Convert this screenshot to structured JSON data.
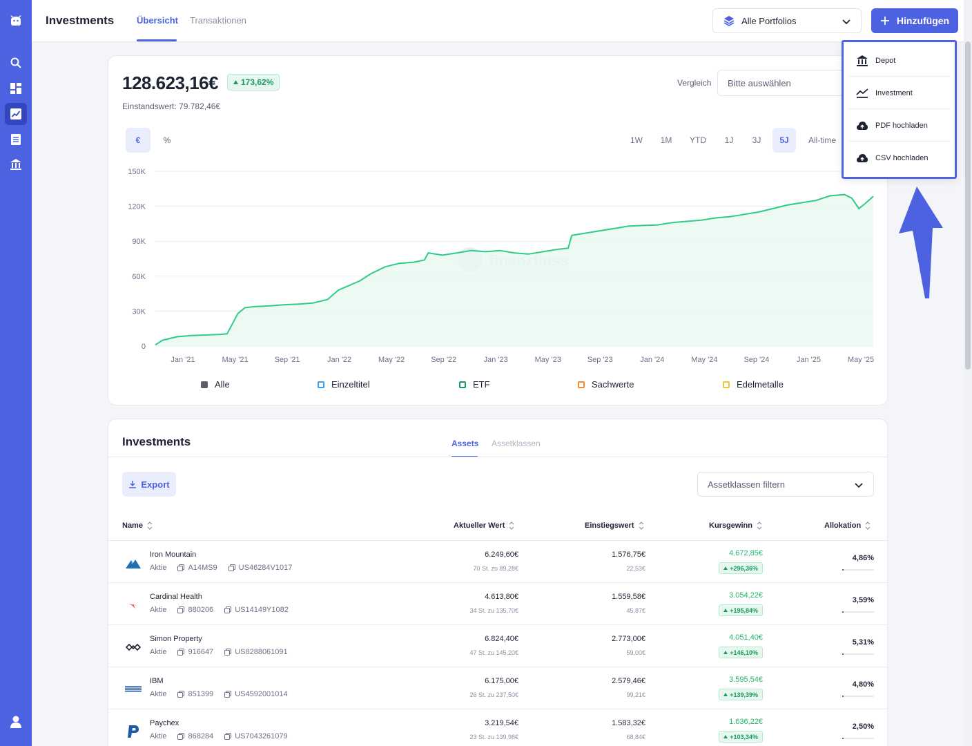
{
  "header": {
    "title": "Investments",
    "tabs": [
      {
        "label": "Übersicht"
      },
      {
        "label": "Transaktionen"
      }
    ],
    "portfolio_select": "Alle Portfolios",
    "add_button": "Hinzufügen"
  },
  "dropdown": {
    "items": [
      {
        "label": "Depot",
        "icon": "bank-icon"
      },
      {
        "label": "Investment",
        "icon": "chart-line-icon"
      },
      {
        "label": "PDF hochladen",
        "icon": "cloud-upload-icon"
      },
      {
        "label": "CSV hochladen",
        "icon": "cloud-upload-icon"
      }
    ]
  },
  "summary": {
    "value": "128.623,16€",
    "change": "173,62%",
    "cost_basis": "Einstandswert: 79.782,46€",
    "compare_label": "Vergleich",
    "compare_placeholder": "Bitte auswählen"
  },
  "units": [
    "€",
    "%"
  ],
  "ranges": [
    "1W",
    "1M",
    "YTD",
    "1J",
    "3J",
    "5J",
    "All-time"
  ],
  "active_range": "5J",
  "watermark": "finanzfluss",
  "chart_data": {
    "type": "area",
    "x_ticks": [
      "Jan '21",
      "May '21",
      "Sep '21",
      "Jan '22",
      "May '22",
      "Sep '22",
      "Jan '23",
      "May '23",
      "Sep '23",
      "Jan '24",
      "May '24",
      "Sep '24",
      "Jan '25",
      "May '25"
    ],
    "y_ticks": [
      "150K",
      "120K",
      "90K",
      "60K",
      "30K",
      "0"
    ],
    "ylim": [
      0,
      150000
    ],
    "series": [
      {
        "color": "#2ecc85",
        "points": [
          [
            0,
            1000
          ],
          [
            0.01,
            5000
          ],
          [
            0.03,
            8000
          ],
          [
            0.05,
            9000
          ],
          [
            0.07,
            9500
          ],
          [
            0.09,
            10000
          ],
          [
            0.1,
            10500
          ],
          [
            0.115,
            28000
          ],
          [
            0.125,
            33000
          ],
          [
            0.14,
            34000
          ],
          [
            0.16,
            34500
          ],
          [
            0.18,
            35500
          ],
          [
            0.2,
            36000
          ],
          [
            0.22,
            37000
          ],
          [
            0.24,
            40000
          ],
          [
            0.255,
            48000
          ],
          [
            0.27,
            52000
          ],
          [
            0.285,
            56000
          ],
          [
            0.3,
            62000
          ],
          [
            0.32,
            68000
          ],
          [
            0.34,
            71000
          ],
          [
            0.36,
            72000
          ],
          [
            0.375,
            74000
          ],
          [
            0.38,
            80000
          ],
          [
            0.4,
            78000
          ],
          [
            0.42,
            80000
          ],
          [
            0.44,
            82000
          ],
          [
            0.46,
            81000
          ],
          [
            0.48,
            82000
          ],
          [
            0.5,
            80000
          ],
          [
            0.52,
            79000
          ],
          [
            0.54,
            81000
          ],
          [
            0.56,
            83000
          ],
          [
            0.575,
            84000
          ],
          [
            0.58,
            95000
          ],
          [
            0.6,
            97000
          ],
          [
            0.62,
            99000
          ],
          [
            0.64,
            101000
          ],
          [
            0.66,
            103000
          ],
          [
            0.68,
            103500
          ],
          [
            0.7,
            104000
          ],
          [
            0.72,
            106000
          ],
          [
            0.74,
            107000
          ],
          [
            0.76,
            108000
          ],
          [
            0.78,
            110000
          ],
          [
            0.8,
            111000
          ],
          [
            0.82,
            113000
          ],
          [
            0.84,
            115000
          ],
          [
            0.86,
            118000
          ],
          [
            0.88,
            121000
          ],
          [
            0.9,
            123000
          ],
          [
            0.92,
            125000
          ],
          [
            0.94,
            129000
          ],
          [
            0.96,
            130000
          ],
          [
            0.97,
            127000
          ],
          [
            0.98,
            118000
          ],
          [
            0.99,
            123000
          ],
          [
            1.0,
            128600
          ]
        ]
      }
    ],
    "legend": [
      {
        "label": "Alle",
        "color": "#5a5f6b",
        "filled": true
      },
      {
        "label": "Einzeltitel",
        "color": "#3aa0f0",
        "filled": false
      },
      {
        "label": "ETF",
        "color": "#1a9a5b",
        "filled": false
      },
      {
        "label": "Sachwerte",
        "color": "#f28b2b",
        "filled": false
      },
      {
        "label": "Edelmetalle",
        "color": "#f2c230",
        "filled": false
      }
    ]
  },
  "investments": {
    "title": "Investments",
    "tabs": [
      {
        "label": "Assets"
      },
      {
        "label": "Assetklassen"
      }
    ],
    "export_label": "Export",
    "filter_placeholder": "Assetklassen filtern",
    "columns": [
      "Name",
      "Aktueller Wert",
      "Einstiegswert",
      "Kursgewinn",
      "Allokation"
    ],
    "rows": [
      {
        "name": "Iron Mountain",
        "type": "Aktie",
        "wkn": "A14MS9",
        "isin": "US46284V1017",
        "value": "6.249,60€",
        "value_sub": "70 St. zu 89,28€",
        "entry": "1.576,75€",
        "entry_sub": "22,53€",
        "gain": "4.672,85€",
        "gain_pct": "+296,36%",
        "alloc": "4,86%",
        "alloc_fraction": 0.0486,
        "logo": "iron-mountain-logo"
      },
      {
        "name": "Cardinal Health",
        "type": "Aktie",
        "wkn": "880206",
        "isin": "US14149Y1082",
        "value": "4.613,80€",
        "value_sub": "34 St. zu 135,70€",
        "entry": "1.559,58€",
        "entry_sub": "45,87€",
        "gain": "3.054,22€",
        "gain_pct": "+195,84%",
        "alloc": "3,59%",
        "alloc_fraction": 0.0359,
        "logo": "cardinal-health-logo"
      },
      {
        "name": "Simon Property",
        "type": "Aktie",
        "wkn": "916647",
        "isin": "US8288061091",
        "value": "6.824,40€",
        "value_sub": "47 St. zu 145,20€",
        "entry": "2.773,00€",
        "entry_sub": "59,00€",
        "gain": "4.051,40€",
        "gain_pct": "+146,10%",
        "alloc": "5,31%",
        "alloc_fraction": 0.0531,
        "logo": "simon-property-logo"
      },
      {
        "name": "IBM",
        "type": "Aktie",
        "wkn": "851399",
        "isin": "US4592001014",
        "value": "6.175,00€",
        "value_sub": "26 St. zu 237,50€",
        "entry": "2.579,46€",
        "entry_sub": "99,21€",
        "gain": "3.595,54€",
        "gain_pct": "+139,39%",
        "alloc": "4,80%",
        "alloc_fraction": 0.048,
        "logo": "ibm-logo"
      },
      {
        "name": "Paychex",
        "type": "Aktie",
        "wkn": "868284",
        "isin": "US7043261079",
        "value": "3.219,54€",
        "value_sub": "23 St. zu 139,98€",
        "entry": "1.583,32€",
        "entry_sub": "68,84€",
        "gain": "1.636,22€",
        "gain_pct": "+103,34%",
        "alloc": "2,50%",
        "alloc_fraction": 0.025,
        "logo": "paychex-logo"
      }
    ]
  },
  "colors": {
    "accent": "#4d62e1",
    "positive": "#1fb56b",
    "sidebar": "#4d62e1"
  }
}
